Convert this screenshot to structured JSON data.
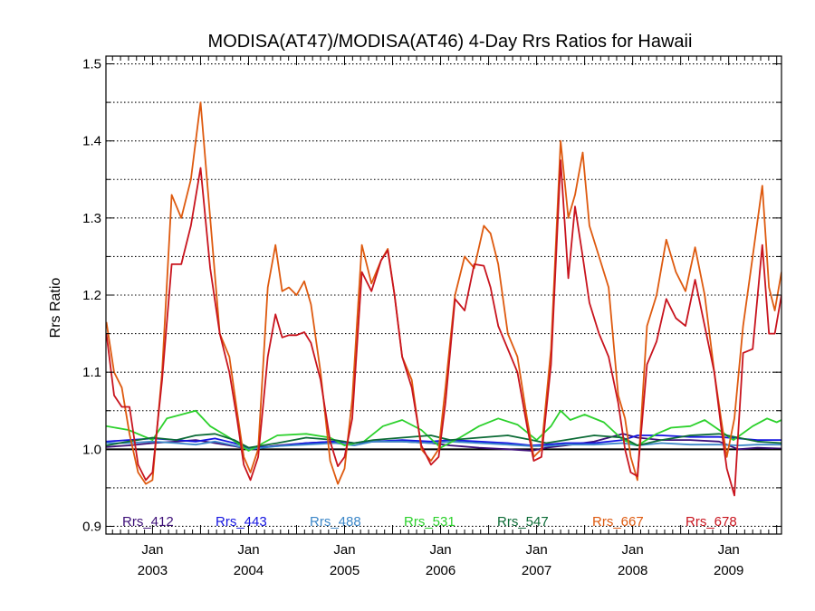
{
  "chart_data": {
    "type": "line",
    "title": "MODISA(AT47)/MODISA(AT46) 4-Day Rrs Ratios for Hawaii",
    "ylabel": "Rrs Ratio",
    "xlabel": "",
    "ylim": [
      0.89,
      1.51
    ],
    "xlim": [
      2002.515,
      2009.55
    ],
    "grid": "horizontal dotted",
    "y_ticks": [
      "0.9",
      "1.0",
      "1.1",
      "1.2",
      "1.3",
      "1.4",
      "1.5"
    ],
    "x_ticks": [
      {
        "month": "Jan",
        "year": "2003",
        "x": 2003.0
      },
      {
        "month": "Jan",
        "year": "2004",
        "x": 2004.0
      },
      {
        "month": "Jan",
        "year": "2005",
        "x": 2005.0
      },
      {
        "month": "Jan",
        "year": "2006",
        "x": 2006.0
      },
      {
        "month": "Jan",
        "year": "2007",
        "x": 2007.0
      },
      {
        "month": "Jan",
        "year": "2008",
        "x": 2008.0
      },
      {
        "month": "Jan",
        "year": "2009",
        "x": 2009.0
      }
    ],
    "reference_line": 1.0,
    "legend_placement": "bottom inside plot",
    "series": [
      {
        "name": "Rrs_412",
        "color": "#3d0f78",
        "x": [
          2002.52,
          2002.75,
          2003.0,
          2003.25,
          2003.45,
          2003.65,
          2003.85,
          2004.0,
          2004.3,
          2004.6,
          2004.9,
          2005.1,
          2005.3,
          2005.6,
          2005.9,
          2006.1,
          2006.4,
          2006.7,
          2006.95,
          2007.1,
          2007.3,
          2007.6,
          2007.9,
          2008.05,
          2008.3,
          2008.6,
          2008.9,
          2009.1,
          2009.3,
          2009.55
        ],
        "values": [
          1.003,
          1.005,
          1.008,
          1.01,
          1.012,
          1.008,
          1.004,
          1.0,
          1.005,
          1.008,
          1.01,
          1.008,
          1.01,
          1.01,
          1.008,
          1.005,
          1.002,
          1.0,
          0.998,
          1.002,
          1.005,
          1.01,
          1.02,
          1.015,
          1.012,
          1.012,
          1.01,
          1.0,
          1.002,
          1.001
        ]
      },
      {
        "name": "Rrs_443",
        "color": "#1414e0",
        "x": [
          2002.52,
          2002.75,
          2003.0,
          2003.25,
          2003.45,
          2003.65,
          2003.85,
          2004.0,
          2004.3,
          2004.6,
          2004.9,
          2005.1,
          2005.3,
          2005.6,
          2005.9,
          2006.1,
          2006.4,
          2006.7,
          2006.95,
          2007.1,
          2007.3,
          2007.6,
          2007.9,
          2008.05,
          2008.3,
          2008.6,
          2008.9,
          2009.1,
          2009.3,
          2009.55
        ],
        "values": [
          1.01,
          1.012,
          1.014,
          1.012,
          1.01,
          1.014,
          1.008,
          1.002,
          1.004,
          1.008,
          1.01,
          1.008,
          1.01,
          1.012,
          1.01,
          1.012,
          1.01,
          1.008,
          1.005,
          1.006,
          1.008,
          1.008,
          1.012,
          1.018,
          1.018,
          1.016,
          1.016,
          1.014,
          1.012,
          1.012
        ]
      },
      {
        "name": "Rrs_488",
        "color": "#3c87c8",
        "x": [
          2002.52,
          2002.75,
          2003.0,
          2003.25,
          2003.45,
          2003.65,
          2003.85,
          2004.0,
          2004.3,
          2004.6,
          2004.9,
          2005.1,
          2005.3,
          2005.6,
          2005.9,
          2006.1,
          2006.4,
          2006.7,
          2006.95,
          2007.1,
          2007.3,
          2007.6,
          2007.9,
          2008.05,
          2008.3,
          2008.6,
          2008.9,
          2009.1,
          2009.3,
          2009.55
        ],
        "values": [
          1.008,
          1.008,
          1.01,
          1.008,
          1.006,
          1.01,
          1.005,
          1.0,
          1.004,
          1.006,
          1.008,
          1.005,
          1.01,
          1.01,
          1.008,
          1.01,
          1.008,
          1.006,
          1.004,
          1.004,
          1.006,
          1.006,
          1.008,
          1.005,
          1.008,
          1.006,
          1.006,
          1.005,
          1.006,
          1.006
        ]
      },
      {
        "name": "Rrs_531",
        "color": "#2cd12c",
        "x": [
          2002.52,
          2002.75,
          2003.0,
          2003.15,
          2003.3,
          2003.45,
          2003.6,
          2003.8,
          2004.0,
          2004.3,
          2004.6,
          2004.85,
          2005.0,
          2005.2,
          2005.4,
          2005.6,
          2005.8,
          2006.0,
          2006.2,
          2006.4,
          2006.6,
          2006.8,
          2007.0,
          2007.15,
          2007.25,
          2007.35,
          2007.5,
          2007.7,
          2007.9,
          2008.05,
          2008.25,
          2008.4,
          2008.6,
          2008.75,
          2008.9,
          2009.05,
          2009.25,
          2009.4,
          2009.5,
          2009.55
        ],
        "values": [
          1.03,
          1.025,
          1.012,
          1.04,
          1.045,
          1.05,
          1.03,
          1.015,
          0.998,
          1.018,
          1.02,
          1.015,
          1.005,
          1.01,
          1.03,
          1.038,
          1.025,
          1.002,
          1.015,
          1.03,
          1.04,
          1.032,
          1.012,
          1.03,
          1.05,
          1.038,
          1.045,
          1.035,
          1.012,
          1.005,
          1.02,
          1.028,
          1.03,
          1.038,
          1.025,
          1.012,
          1.03,
          1.04,
          1.035,
          1.038
        ]
      },
      {
        "name": "Rrs_547",
        "color": "#0c6b36",
        "x": [
          2002.52,
          2002.75,
          2003.0,
          2003.25,
          2003.45,
          2003.65,
          2003.85,
          2004.0,
          2004.3,
          2004.6,
          2004.9,
          2005.1,
          2005.3,
          2005.6,
          2005.9,
          2006.1,
          2006.4,
          2006.7,
          2006.95,
          2007.1,
          2007.3,
          2007.6,
          2007.9,
          2008.05,
          2008.3,
          2008.6,
          2008.9,
          2009.1,
          2009.3,
          2009.55
        ],
        "values": [
          1.005,
          1.01,
          1.015,
          1.012,
          1.018,
          1.02,
          1.012,
          1.002,
          1.008,
          1.015,
          1.012,
          1.008,
          1.012,
          1.015,
          1.018,
          1.012,
          1.015,
          1.018,
          1.012,
          1.008,
          1.012,
          1.018,
          1.015,
          1.005,
          1.012,
          1.018,
          1.02,
          1.015,
          1.01,
          1.008
        ]
      },
      {
        "name": "Rrs_667",
        "color": "#de5a0f",
        "x": [
          2002.52,
          2002.6,
          2002.68,
          2002.76,
          2002.85,
          2002.93,
          2003.0,
          2003.1,
          2003.2,
          2003.3,
          2003.4,
          2003.5,
          2003.6,
          2003.7,
          2003.8,
          2003.88,
          2003.95,
          2004.02,
          2004.1,
          2004.2,
          2004.28,
          2004.35,
          2004.42,
          2004.5,
          2004.58,
          2004.65,
          2004.75,
          2004.85,
          2004.93,
          2005.0,
          2005.08,
          2005.18,
          2005.28,
          2005.38,
          2005.45,
          2005.52,
          2005.6,
          2005.7,
          2005.8,
          2005.9,
          2005.98,
          2006.05,
          2006.15,
          2006.25,
          2006.35,
          2006.45,
          2006.52,
          2006.6,
          2006.7,
          2006.8,
          2006.9,
          2006.97,
          2007.05,
          2007.15,
          2007.25,
          2007.33,
          2007.4,
          2007.48,
          2007.55,
          2007.65,
          2007.75,
          2007.85,
          2007.92,
          2007.98,
          2008.05,
          2008.15,
          2008.25,
          2008.35,
          2008.45,
          2008.55,
          2008.65,
          2008.75,
          2008.85,
          2008.92,
          2008.98,
          2009.06,
          2009.15,
          2009.25,
          2009.35,
          2009.42,
          2009.48,
          2009.55
        ],
        "values": [
          1.165,
          1.1,
          1.08,
          1.02,
          0.97,
          0.955,
          0.96,
          1.1,
          1.33,
          1.3,
          1.35,
          1.45,
          1.3,
          1.15,
          1.12,
          1.05,
          0.99,
          0.97,
          1.0,
          1.21,
          1.265,
          1.205,
          1.21,
          1.2,
          1.218,
          1.188,
          1.1,
          0.985,
          0.955,
          0.975,
          1.065,
          1.265,
          1.215,
          1.245,
          1.26,
          1.2,
          1.12,
          1.09,
          1.0,
          0.985,
          1.0,
          1.08,
          1.2,
          1.25,
          1.235,
          1.29,
          1.28,
          1.24,
          1.15,
          1.12,
          1.04,
          0.99,
          1.0,
          1.13,
          1.4,
          1.3,
          1.33,
          1.385,
          1.29,
          1.25,
          1.21,
          1.07,
          1.04,
          0.99,
          0.96,
          1.16,
          1.2,
          1.272,
          1.23,
          1.205,
          1.262,
          1.2,
          1.1,
          1.04,
          0.99,
          1.04,
          1.16,
          1.25,
          1.342,
          1.21,
          1.18,
          1.23
        ]
      },
      {
        "name": "Rrs_678",
        "color": "#c8141e",
        "x": [
          2002.52,
          2002.6,
          2002.68,
          2002.76,
          2002.85,
          2002.93,
          2003.0,
          2003.1,
          2003.2,
          2003.3,
          2003.4,
          2003.5,
          2003.6,
          2003.7,
          2003.8,
          2003.88,
          2003.95,
          2004.02,
          2004.1,
          2004.2,
          2004.28,
          2004.35,
          2004.42,
          2004.5,
          2004.58,
          2004.65,
          2004.75,
          2004.85,
          2004.93,
          2005.0,
          2005.08,
          2005.18,
          2005.28,
          2005.38,
          2005.45,
          2005.52,
          2005.6,
          2005.7,
          2005.8,
          2005.9,
          2005.98,
          2006.05,
          2006.15,
          2006.25,
          2006.35,
          2006.45,
          2006.52,
          2006.6,
          2006.7,
          2006.8,
          2006.9,
          2006.97,
          2007.05,
          2007.15,
          2007.25,
          2007.33,
          2007.4,
          2007.48,
          2007.55,
          2007.65,
          2007.75,
          2007.85,
          2007.92,
          2007.98,
          2008.05,
          2008.15,
          2008.25,
          2008.35,
          2008.45,
          2008.55,
          2008.65,
          2008.75,
          2008.85,
          2008.92,
          2008.98,
          2009.06,
          2009.15,
          2009.25,
          2009.35,
          2009.42,
          2009.48,
          2009.55
        ],
        "values": [
          1.15,
          1.07,
          1.055,
          1.055,
          0.98,
          0.96,
          0.97,
          1.09,
          1.24,
          1.24,
          1.29,
          1.365,
          1.235,
          1.15,
          1.1,
          1.04,
          0.98,
          0.96,
          0.99,
          1.12,
          1.175,
          1.145,
          1.148,
          1.148,
          1.152,
          1.138,
          1.09,
          1.01,
          0.978,
          0.99,
          1.04,
          1.23,
          1.205,
          1.245,
          1.258,
          1.2,
          1.12,
          1.08,
          1.005,
          0.98,
          0.99,
          1.06,
          1.195,
          1.18,
          1.24,
          1.238,
          1.21,
          1.16,
          1.13,
          1.1,
          1.03,
          0.985,
          0.99,
          1.11,
          1.375,
          1.222,
          1.315,
          1.25,
          1.19,
          1.15,
          1.12,
          1.06,
          1.0,
          0.97,
          0.965,
          1.11,
          1.14,
          1.195,
          1.17,
          1.16,
          1.22,
          1.16,
          1.1,
          1.03,
          0.975,
          0.94,
          1.125,
          1.13,
          1.265,
          1.15,
          1.15,
          1.2
        ]
      }
    ]
  }
}
